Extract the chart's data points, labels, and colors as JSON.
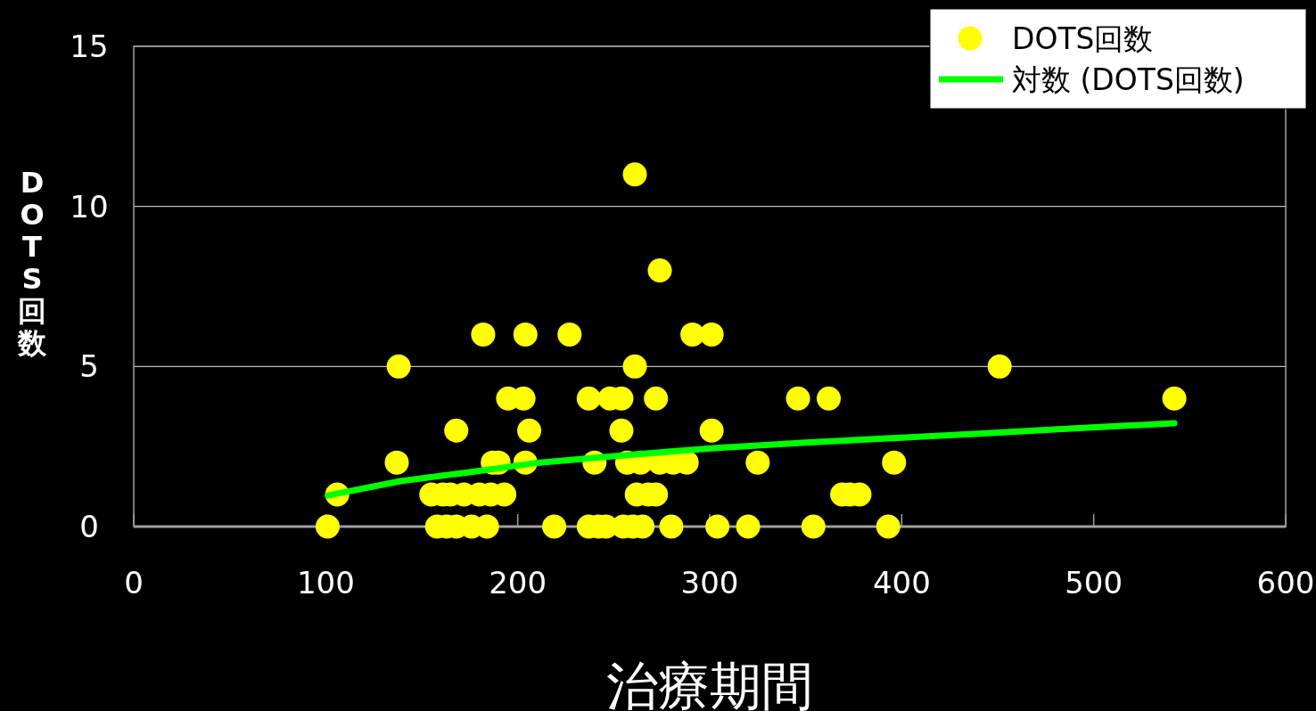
{
  "chart_data": {
    "type": "scatter",
    "xlabel": "治療期間",
    "ylabel": "DOTS回数",
    "xlim": [
      0,
      600
    ],
    "xticks": [
      0,
      100,
      200,
      300,
      400,
      500,
      600
    ],
    "ylim": [
      0,
      15
    ],
    "yticks": [
      0,
      5,
      10,
      15
    ],
    "grid": "y",
    "legend": "top right",
    "series": [
      {
        "name": "DOTS回数",
        "color": "#ffff00",
        "marker": "circle",
        "x": [
          101,
          158,
          163,
          168,
          176,
          184,
          219,
          237,
          242,
          246,
          255,
          260,
          265,
          280,
          304,
          320,
          354,
          393,
          106,
          155,
          161,
          165,
          172,
          180,
          186,
          193,
          262,
          268,
          272,
          369,
          373,
          378,
          137,
          187,
          190,
          204,
          240,
          257,
          264,
          274,
          281,
          288,
          325,
          396,
          168,
          206,
          254,
          301,
          195,
          203,
          237,
          248,
          254,
          272,
          346,
          362,
          542,
          138,
          261,
          451,
          182,
          204,
          227,
          291,
          301,
          274,
          261
        ],
        "values": [
          0,
          0,
          0,
          0,
          0,
          0,
          0,
          0,
          0,
          0,
          0,
          0,
          0,
          0,
          0,
          0,
          0,
          0,
          1,
          1,
          1,
          1,
          1,
          1,
          1,
          1,
          1,
          1,
          1,
          1,
          1,
          1,
          2,
          2,
          2,
          2,
          2,
          2,
          2,
          2,
          2,
          2,
          2,
          2,
          3,
          3,
          3,
          3,
          4,
          4,
          4,
          4,
          4,
          4,
          4,
          4,
          4,
          5,
          5,
          5,
          6,
          6,
          6,
          6,
          6,
          8,
          11
        ]
      },
      {
        "name": "対数 (DOTS回数)",
        "type": "line",
        "color": "#00ff00",
        "x": [
          101,
          139,
          175,
          209,
          250,
          302,
          350,
          395,
          440,
          488,
          542
        ],
        "values": [
          0.97,
          1.42,
          1.7,
          1.98,
          2.2,
          2.45,
          2.62,
          2.76,
          2.9,
          3.06,
          3.23
        ]
      }
    ]
  }
}
